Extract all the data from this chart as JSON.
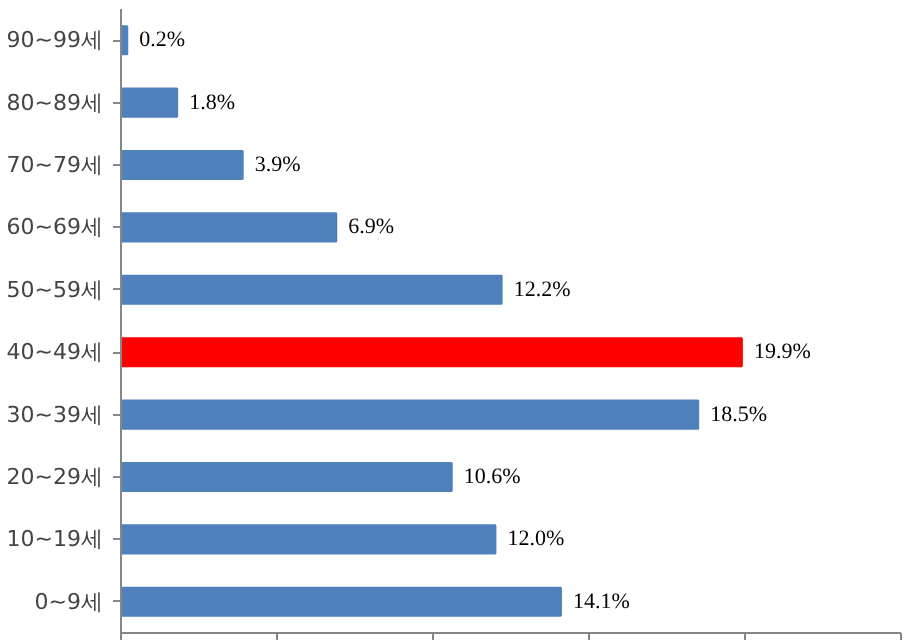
{
  "chart_data": {
    "type": "bar",
    "orientation": "horizontal",
    "categories": [
      "90~99세",
      "80~89세",
      "70~79세",
      "60~69세",
      "50~59세",
      "40~49세",
      "30~39세",
      "20~29세",
      "10~19세",
      "0~9세"
    ],
    "values": [
      0.2,
      1.8,
      3.9,
      6.9,
      12.2,
      19.9,
      18.5,
      10.6,
      12.0,
      14.1
    ],
    "colors": [
      "#4f81bd",
      "#4f81bd",
      "#4f81bd",
      "#4f81bd",
      "#4f81bd",
      "#ff0000",
      "#4f81bd",
      "#4f81bd",
      "#4f81bd",
      "#4f81bd"
    ],
    "value_labels": [
      "0.2%",
      "1.8%",
      "3.9%",
      "6.9%",
      "12.2%",
      "19.9%",
      "18.5%",
      "10.6%",
      "12.0%",
      "14.1%"
    ],
    "xlim": [
      0,
      25
    ],
    "xticks": [
      {
        "value": 0,
        "label": null
      },
      {
        "value": 5,
        "label": null
      },
      {
        "value": 10,
        "label": null
      },
      {
        "value": 15,
        "label": null
      },
      {
        "value": 20,
        "label": null
      },
      {
        "value": 25,
        "label": null
      }
    ],
    "tick_labels": "y"
  }
}
